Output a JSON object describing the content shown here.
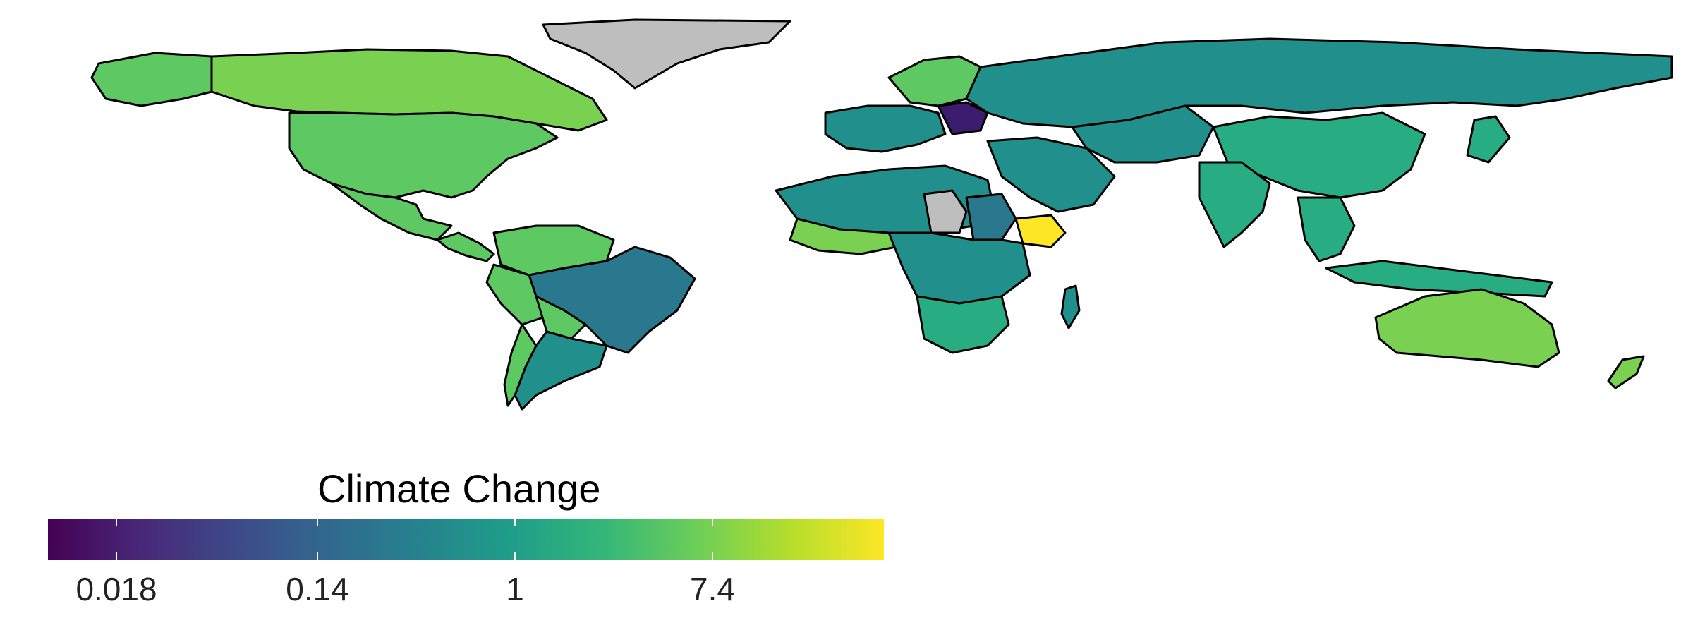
{
  "legend": {
    "title": "Climate Change",
    "scale": "log",
    "ticks": [
      "0.018",
      "0.14",
      "1",
      "7.4"
    ],
    "colors": [
      "#440154",
      "#482878",
      "#3e4989",
      "#31688e",
      "#26828e",
      "#1f9e89",
      "#35b779",
      "#6ece58",
      "#b5de2b",
      "#fde725"
    ],
    "missing_color": "#bebebe"
  },
  "palette": {
    "very_low": "#3b1c6e",
    "low_mid": "#2a788e",
    "mid": "#21908d",
    "mid_high": "#27ad81",
    "high": "#5ec962",
    "very_high": "#7ad151",
    "highest": "#fde725",
    "missing": "#bebebe"
  }
}
